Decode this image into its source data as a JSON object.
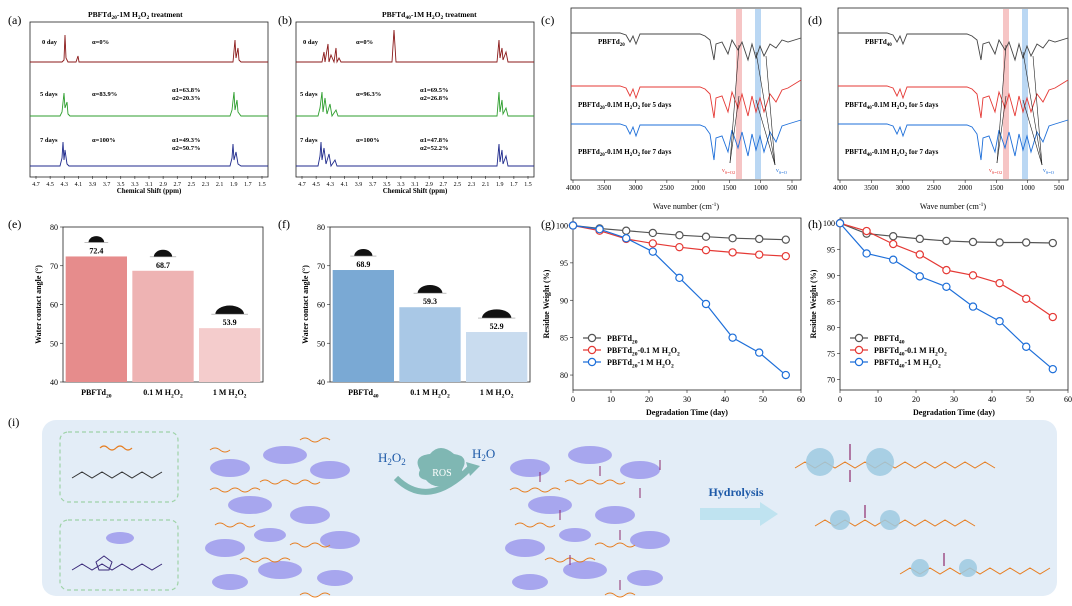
{
  "panel_labels": [
    "(a)",
    "(b)",
    "(c)",
    "(d)",
    "(e)",
    "(f)",
    "(g)",
    "(h)",
    "(i)"
  ],
  "colors": {
    "red": "#c0392b",
    "green": "#2e9e2e",
    "navy": "#1f2a8c",
    "darkred": "#8b1a1a",
    "grey": "#555555",
    "ir_red": "#e53935",
    "ir_blue": "#1e6fd9",
    "band_red": "#f4b6b6",
    "band_blue": "#a9cdf0",
    "bar_e": [
      "#e68c8c",
      "#eeb3b3",
      "#f4cccc"
    ],
    "bar_f": [
      "#7aa9d4",
      "#a9c8e6",
      "#c9dcef"
    ],
    "scheme_bg": "#e3edf7"
  },
  "nmr": [
    {
      "title_pre": "PBFTd",
      "title_sub": "20",
      "title_post": "-1M H",
      "title_sub2": "2",
      "title_post2": "O",
      "title_sub3": "2",
      "title_end": " treatment",
      "xlabel": "Chemical Shift (ppm)",
      "ticks": [
        "4.7",
        "4.5",
        "4.3",
        "4.1",
        "3.9",
        "3.7",
        "3.5",
        "3.3",
        "3.1",
        "2.9",
        "2.7",
        "2.5",
        "2.3",
        "2.1",
        "1.9",
        "1.7",
        "1.5"
      ],
      "traces": [
        {
          "day": "0 day",
          "alpha": "α=0%",
          "a1": "",
          "a2": ""
        },
        {
          "day": "5 days",
          "alpha": "α=83.9%",
          "a1": "α1=63.8%",
          "a2": "α2=20.3%"
        },
        {
          "day": "7 days",
          "alpha": "α=100%",
          "a1": "α1=49.3%",
          "a2": "α2=50.7%"
        }
      ]
    },
    {
      "title_pre": "PBFTd",
      "title_sub": "40",
      "title_post": "-1M H",
      "title_sub2": "2",
      "title_post2": "O",
      "title_sub3": "2",
      "title_end": " treatment",
      "xlabel": "Chemical Shift (ppm)",
      "ticks": [
        "4.7",
        "4.5",
        "4.3",
        "4.1",
        "3.9",
        "3.7",
        "3.5",
        "3.3",
        "3.1",
        "2.9",
        "2.7",
        "2.5",
        "2.3",
        "2.1",
        "1.9",
        "1.7",
        "1.5"
      ],
      "traces": [
        {
          "day": "0 day",
          "alpha": "α=0%",
          "a1": "",
          "a2": ""
        },
        {
          "day": "5 days",
          "alpha": "α=96.3%",
          "a1": "α1=69.5%",
          "a2": "α2=26.8%"
        },
        {
          "day": "7 days",
          "alpha": "α=100%",
          "a1": "α1=47.8%",
          "a2": "α2=52.2%"
        }
      ]
    }
  ],
  "ir": [
    {
      "base": "20",
      "labels": [
        "PBFTd20",
        "PBFTd20-0.1M H2O2 for 5 days",
        "PBFTd20-0.1M H2O2 for 7 days"
      ],
      "xlabel": "Wave number (cm-1)",
      "ticks": [
        "4000",
        "3500",
        "3000",
        "2500",
        "2000",
        "1500",
        "1000",
        "500"
      ],
      "nu1": "νS=O2",
      "nu2": "νS=O"
    },
    {
      "base": "40",
      "labels": [
        "PBFTd40",
        "PBFTd40-0.1M H2O2 for 5 days",
        "PBFTd40-0.1M H2O2 for 7 days"
      ],
      "xlabel": "Wave number (cm-1)",
      "ticks": [
        "4000",
        "3500",
        "3000",
        "2500",
        "2000",
        "1500",
        "1000",
        "500"
      ],
      "nu1": "νS=O2",
      "nu2": "νS=O"
    }
  ],
  "chart_data": [
    {
      "panel": "e",
      "type": "bar",
      "ylabel": "Water contact angle (°)",
      "ylim": [
        40,
        80
      ],
      "yticks": [
        40,
        50,
        60,
        70,
        80
      ],
      "categories": [
        "PBFTd20",
        "0.1 M H2O2",
        "1 M H2O2"
      ],
      "values": [
        72.4,
        68.7,
        53.9
      ],
      "value_labels": [
        "72.4",
        "68.7",
        "53.9"
      ]
    },
    {
      "panel": "f",
      "type": "bar",
      "ylabel": "Water contact angle (°)",
      "ylim": [
        40,
        80
      ],
      "yticks": [
        40,
        50,
        60,
        70,
        80
      ],
      "categories": [
        "PBFTd40",
        "0.1 M H2O2",
        "1 M H2O2"
      ],
      "values": [
        68.9,
        59.3,
        52.9
      ],
      "value_labels": [
        "68.9",
        "59.3",
        "52.9"
      ]
    },
    {
      "panel": "g",
      "type": "line",
      "xlabel": "Degradation Time (day)",
      "ylabel": "Residue Weight (%)",
      "xlim": [
        0,
        60
      ],
      "ylim": [
        78,
        101
      ],
      "xticks": [
        0,
        10,
        20,
        30,
        40,
        50,
        60
      ],
      "yticks": [
        80,
        85,
        90,
        95,
        100
      ],
      "x": [
        0,
        7,
        14,
        21,
        28,
        35,
        42,
        49,
        56
      ],
      "legend_position": "bottom-left",
      "series": [
        {
          "name": "PBFTd20",
          "color": "#555555",
          "values": [
            100,
            99.6,
            99.3,
            99.0,
            98.7,
            98.5,
            98.3,
            98.2,
            98.1
          ]
        },
        {
          "name": "PBFTd20-0.1 M H2O2",
          "color": "#e53935",
          "values": [
            100,
            99.3,
            98.2,
            97.6,
            97.1,
            96.7,
            96.4,
            96.1,
            95.9
          ]
        },
        {
          "name": "PBFTd20-1 M H2O2",
          "color": "#1e6fd9",
          "values": [
            100,
            99.5,
            98.3,
            96.5,
            93.0,
            89.5,
            85.0,
            83.0,
            80.0
          ]
        }
      ]
    },
    {
      "panel": "h",
      "type": "line",
      "xlabel": "Degradation Time (day)",
      "ylabel": "Residue Weight (%)",
      "xlim": [
        0,
        60
      ],
      "ylim": [
        68,
        101
      ],
      "xticks": [
        0,
        10,
        20,
        30,
        40,
        50,
        60
      ],
      "yticks": [
        70,
        75,
        80,
        85,
        90,
        95,
        100
      ],
      "x": [
        0,
        7,
        14,
        21,
        28,
        35,
        42,
        49,
        56
      ],
      "legend_position": "bottom-left",
      "series": [
        {
          "name": "PBFTd40",
          "color": "#555555",
          "values": [
            100,
            98.0,
            97.5,
            97.0,
            96.6,
            96.4,
            96.3,
            96.3,
            96.2
          ]
        },
        {
          "name": "PBFTd40-0.1 M H2O2",
          "color": "#e53935",
          "values": [
            100,
            98.5,
            96.0,
            94.0,
            91.0,
            90.0,
            88.5,
            85.5,
            82.0
          ]
        },
        {
          "name": "PBFTd40-1 M H2O2",
          "color": "#1e6fd9",
          "values": [
            100,
            94.2,
            93.0,
            89.8,
            87.8,
            84.0,
            81.2,
            76.3,
            72.0
          ]
        }
      ]
    }
  ],
  "scheme": {
    "h2o2": "H2O2",
    "h2o": "H2O",
    "ros": "ROS",
    "hydrolysis": "Hydrolysis"
  }
}
